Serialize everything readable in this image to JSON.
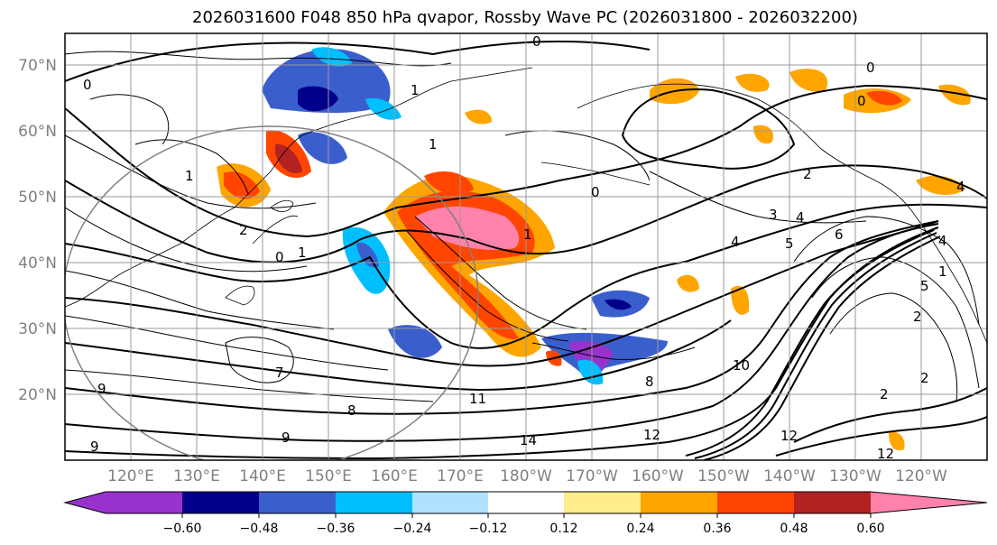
{
  "title": "2026031600 F048 850 hPa qvapor, Rossby Wave PC (2026031800 - 2026032200)",
  "map": {
    "lat_labels": [
      "70°N",
      "60°N",
      "50°N",
      "40°N",
      "30°N",
      "20°N"
    ],
    "lon_labels": [
      "120°E",
      "130°E",
      "140°E",
      "150°E",
      "160°E",
      "170°E",
      "180°W",
      "170°W",
      "160°W",
      "150°W",
      "140°W",
      "130°W",
      "120°W"
    ],
    "lat_range": [
      10,
      75
    ],
    "lon_range_east": [
      113,
      253
    ]
  },
  "colorbar": {
    "ticks": [
      "−0.60",
      "−0.48",
      "−0.36",
      "−0.24",
      "−0.12",
      "0.12",
      "0.24",
      "0.36",
      "0.48",
      "0.60"
    ],
    "colors": [
      "#9932cc",
      "#00008b",
      "#3a5fcd",
      "#00bfff",
      "#b0e2ff",
      "#ffffff",
      "#ffec8b",
      "#ffa500",
      "#ff4500",
      "#b22222",
      "#ff82ab"
    ]
  },
  "contour_labels": [
    "0",
    "0",
    "0",
    "0",
    "1",
    "1",
    "1",
    "1",
    "2",
    "2",
    "3",
    "4",
    "4",
    "5",
    "6",
    "7",
    "8",
    "8",
    "9",
    "9",
    "10",
    "11",
    "12",
    "12",
    "14",
    "0",
    "0",
    "1",
    "2",
    "4",
    "4",
    "5",
    "1",
    "2",
    "2",
    "9",
    "12"
  ]
}
